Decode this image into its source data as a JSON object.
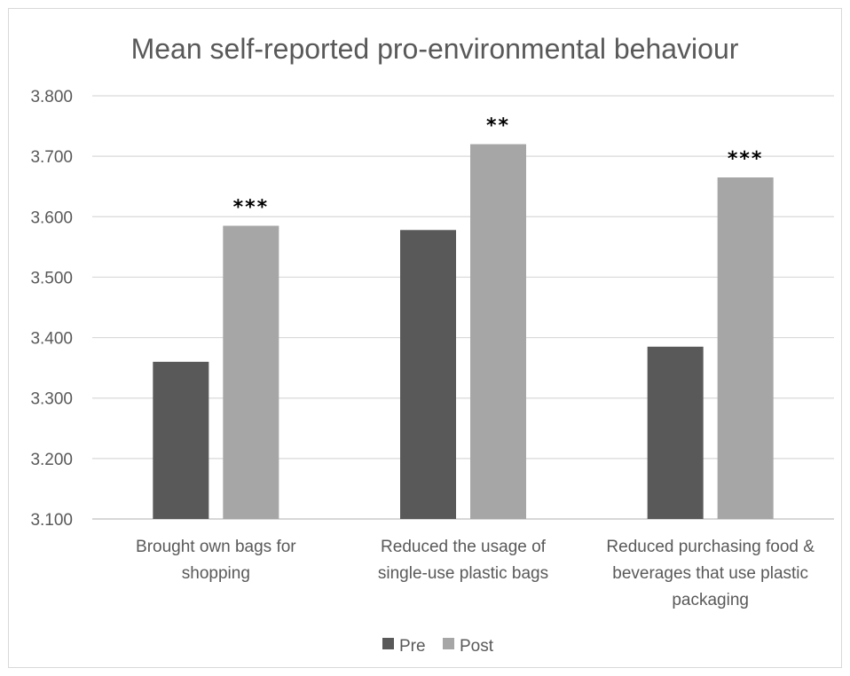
{
  "chart_data": {
    "type": "bar",
    "title": "Mean self-reported pro-environmental behaviour",
    "xlabel": "",
    "ylabel": "",
    "ylim": [
      3.1,
      3.8
    ],
    "yticks": [
      "3.100",
      "3.200",
      "3.300",
      "3.400",
      "3.500",
      "3.600",
      "3.700",
      "3.800"
    ],
    "grid": true,
    "legend": "bottom",
    "categories": [
      [
        "Brought own bags for",
        "shopping"
      ],
      [
        "Reduced the usage of",
        "single-use plastic bags"
      ],
      [
        "Reduced purchasing food &",
        "beverages that use plastic",
        "packaging"
      ]
    ],
    "series": [
      {
        "name": "Pre",
        "color": "#595959",
        "values": [
          3.36,
          3.578,
          3.385
        ]
      },
      {
        "name": "Post",
        "color": "#a6a6a6",
        "values": [
          3.585,
          3.72,
          3.665
        ]
      }
    ],
    "annotations": [
      "***",
      "**",
      "***"
    ]
  }
}
